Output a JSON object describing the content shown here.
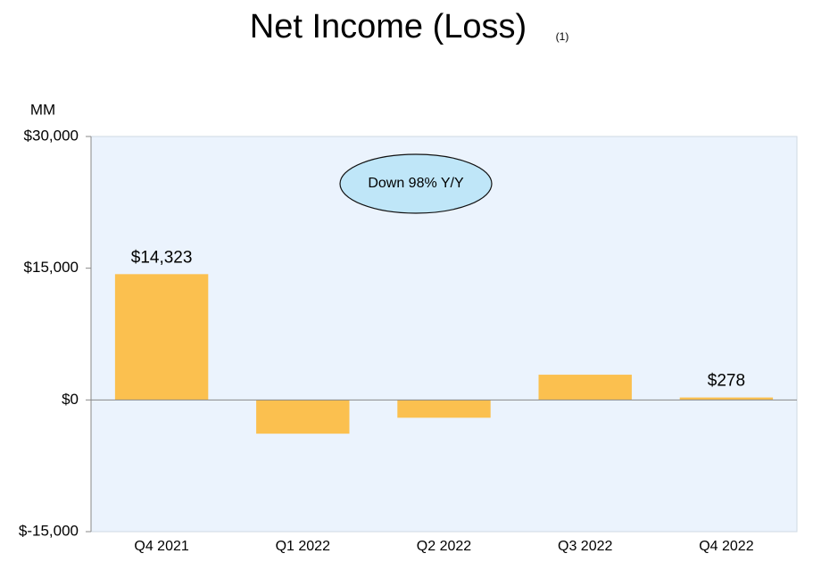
{
  "chart_data": {
    "type": "bar",
    "title": "Net Income (Loss)",
    "title_note": "(1)",
    "y_label": "MM",
    "annotation": "Down 98% Y/Y",
    "categories": [
      "Q4 2021",
      "Q1 2022",
      "Q2 2022",
      "Q3 2022",
      "Q4 2022"
    ],
    "values": [
      14323,
      -3844,
      -2028,
      2872,
      278
    ],
    "value_labels": [
      "$14,323",
      null,
      null,
      null,
      "$278"
    ],
    "color": "#fbc04f",
    "ylim": [
      -15000,
      30000
    ],
    "yticks": [
      {
        "value": -15000,
        "label": "$-15,000"
      },
      {
        "value": 0,
        "label": "$0"
      },
      {
        "value": 15000,
        "label": "$15,000"
      },
      {
        "value": 30000,
        "label": "$30,000"
      }
    ]
  }
}
